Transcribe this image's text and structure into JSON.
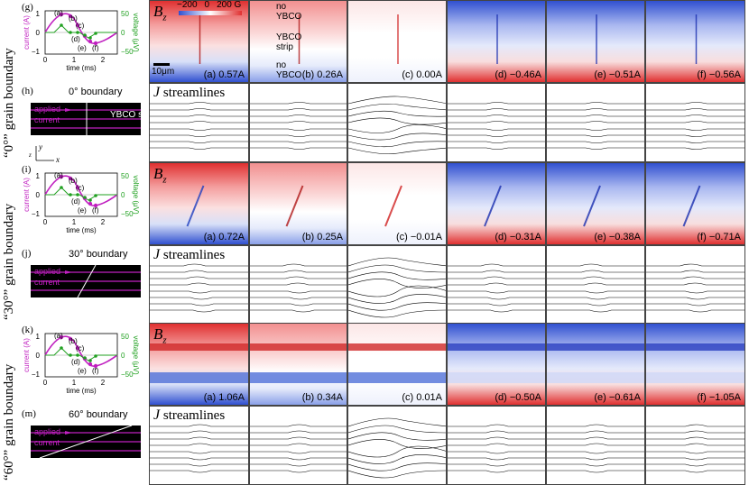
{
  "rows": [
    {
      "row_label": "“0°” grain boundary",
      "graph_label": "(g)",
      "schematic_label": "(h)",
      "schematic_title": "0° boundary",
      "schematic_strip": "YBCO strip",
      "schematic_applied": "applied",
      "schematic_current": "current",
      "bz_title": "B",
      "bz_sub": "z",
      "j_title_sym": "J",
      "j_title_text": " streamlines",
      "panels": [
        {
          "label": "(a) 0.57A",
          "tone": "red"
        },
        {
          "label": "(b) 0.26A",
          "tone": "lightred"
        },
        {
          "label": "(c) 0.00A",
          "tone": "white"
        },
        {
          "label": "(d) −0.46A",
          "tone": "blue"
        },
        {
          "label": "(e) −0.51A",
          "tone": "blue"
        },
        {
          "label": "(f) −0.56A",
          "tone": "blue"
        }
      ]
    },
    {
      "row_label": "“30°” grain boundary",
      "graph_label": "(i)",
      "schematic_label": "(j)",
      "schematic_title": "30° boundary",
      "schematic_applied": "applied",
      "schematic_current": "current",
      "bz_title": "B",
      "bz_sub": "z",
      "j_title_sym": "J",
      "j_title_text": " streamlines",
      "panels": [
        {
          "label": "(a) 0.72A",
          "tone": "red"
        },
        {
          "label": "(b) 0.25A",
          "tone": "lightred"
        },
        {
          "label": "(c) −0.01A",
          "tone": "white"
        },
        {
          "label": "(d) −0.31A",
          "tone": "blue"
        },
        {
          "label": "(e) −0.38A",
          "tone": "blue"
        },
        {
          "label": "(f) −0.71A",
          "tone": "blue"
        }
      ]
    },
    {
      "row_label": "“60°” grain boundary",
      "graph_label": "(k)",
      "schematic_label": "(m)",
      "schematic_title": "60° boundary",
      "schematic_applied": "applied",
      "schematic_current": "current",
      "bz_title": "B",
      "bz_sub": "z",
      "j_title_sym": "J",
      "j_title_text": " streamlines",
      "panels": [
        {
          "label": "(a) 1.06A",
          "tone": "red"
        },
        {
          "label": "(b) 0.34A",
          "tone": "lightred"
        },
        {
          "label": "(c) 0.01A",
          "tone": "white"
        },
        {
          "label": "(d) −0.50A",
          "tone": "blue"
        },
        {
          "label": "(e) −0.61A",
          "tone": "blue"
        },
        {
          "label": "(f) −1.05A",
          "tone": "blue"
        }
      ]
    }
  ],
  "graph": {
    "ylabel_left": "current (A)",
    "ylabel_right": "voltage (μV)",
    "xlabel": "time (ms)",
    "xticks": [
      "0",
      "1",
      "2"
    ],
    "yticks_left": [
      "1",
      "0",
      "−1"
    ],
    "yticks_right": [
      "50",
      "0",
      "−50"
    ],
    "points": [
      "(a)",
      "(b)",
      "(c)",
      "(d)",
      "(e)",
      "(f)"
    ]
  },
  "colorbar": {
    "min": "−200",
    "mid": "0",
    "max": "200 G"
  },
  "annotations": {
    "no_ybco_top": "no YBCO",
    "ybco_strip": "YBCO strip",
    "no_ybco_bottom": "no YBCO",
    "scale_bar": "10μm",
    "axis_y": "y",
    "axis_x": "x",
    "axis_z": "z"
  },
  "colors": {
    "current": "#c020c0",
    "voltage": "#20a020",
    "red": "#e03030",
    "blue": "#3050d0"
  }
}
